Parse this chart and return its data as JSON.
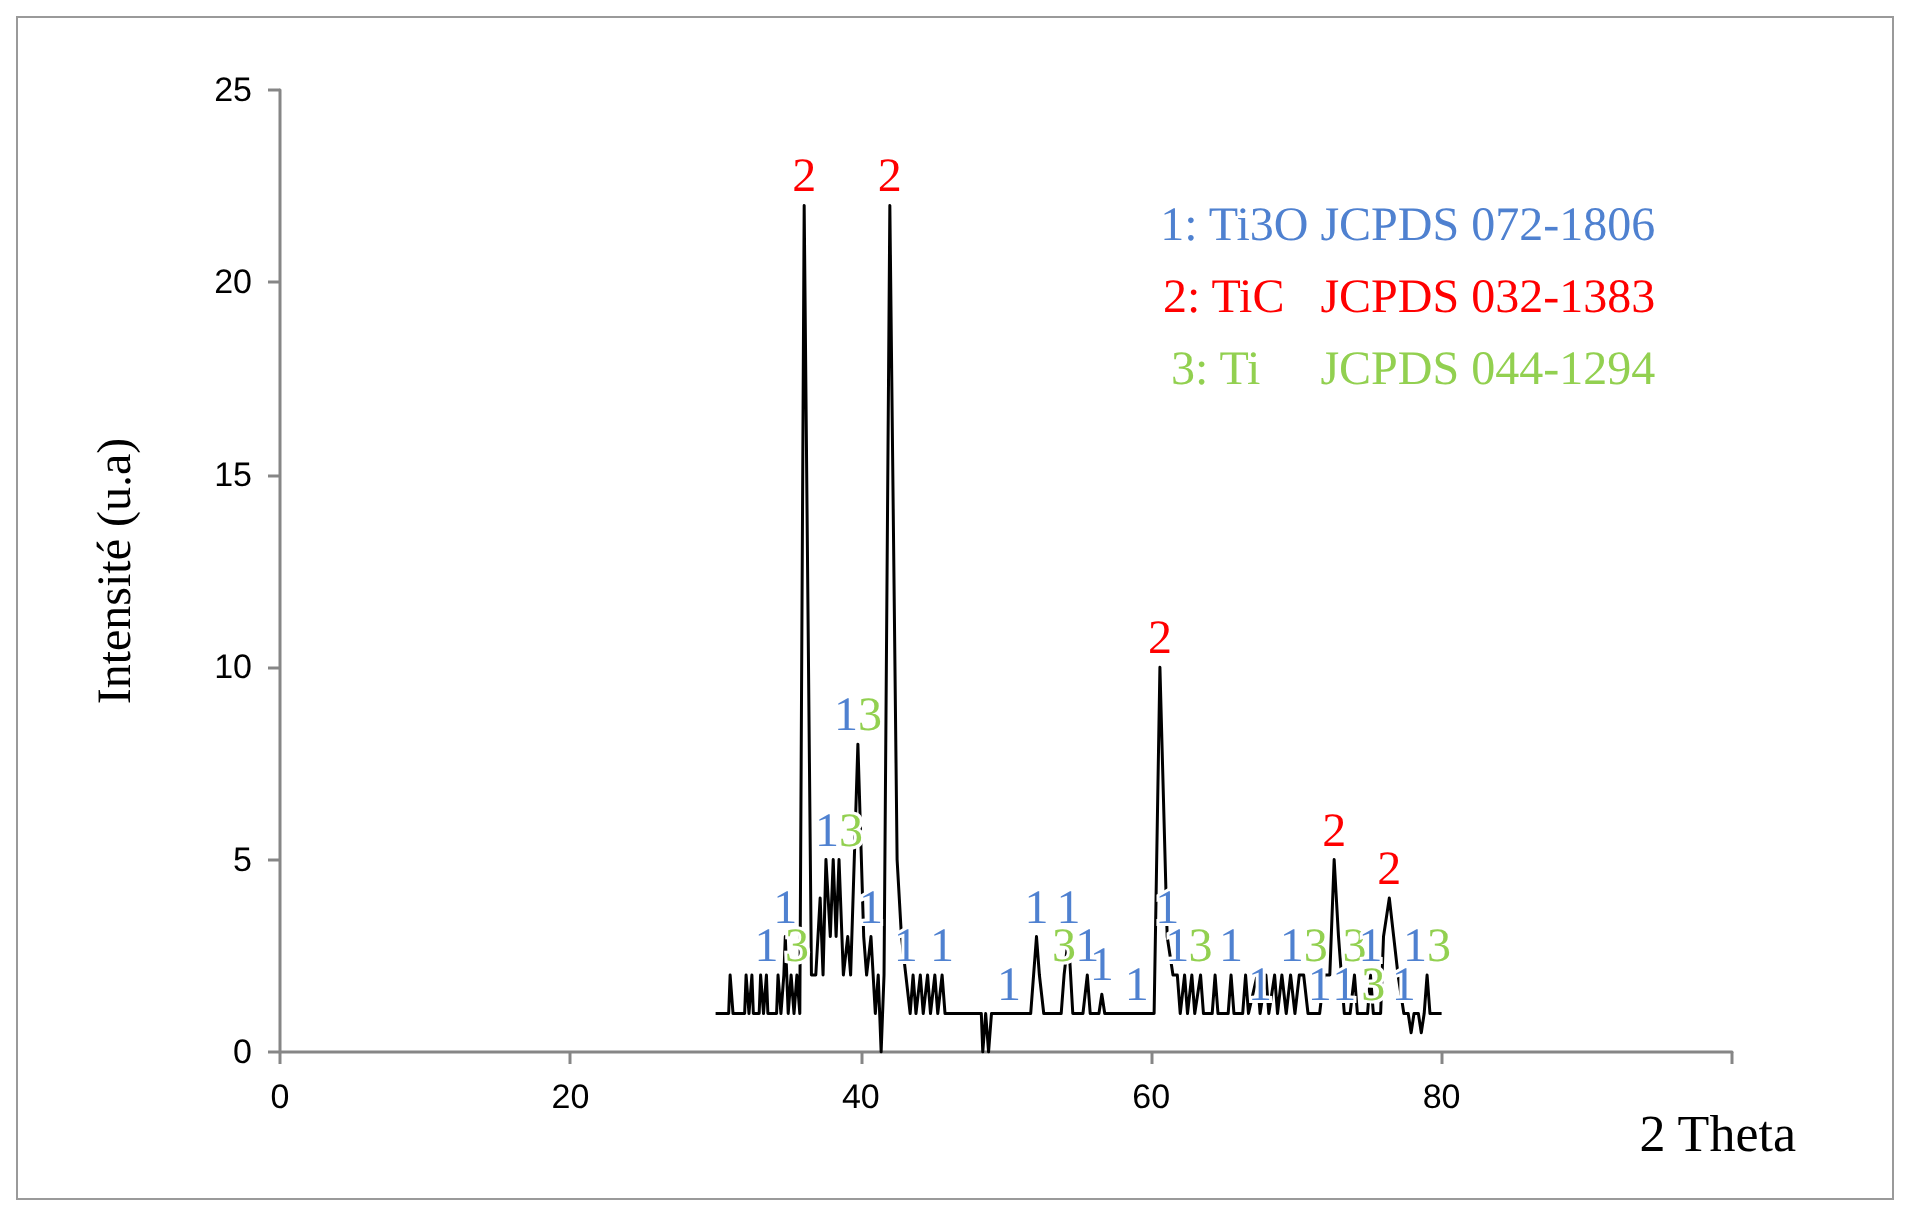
{
  "chart_data": {
    "type": "line",
    "xlabel": "2 Theta",
    "ylabel": "Intensité (u.a)",
    "xlim": [
      0,
      100
    ],
    "xticks": [
      0,
      20,
      40,
      60,
      80,
      {
        "value": 100,
        "label": null
      }
    ],
    "ylim": [
      0,
      25
    ],
    "yticks": [
      0,
      5,
      10,
      15,
      20,
      25
    ],
    "marker": "none",
    "series": [
      {
        "color": "#000000",
        "x": [
          30,
          30.9,
          31,
          31.2,
          32,
          32.1,
          32.3,
          32.5,
          32.6,
          33,
          33.1,
          33.3,
          33.5,
          33.6,
          34.2,
          34.3,
          34.5,
          34.7,
          34.8,
          35.0,
          35.2,
          35.4,
          35.6,
          35.8,
          36.1,
          36.6,
          36.9,
          37.2,
          37.4,
          37.6,
          37.9,
          38.1,
          38.3,
          38.5,
          38.8,
          39.1,
          39.3,
          39.8,
          40.2,
          40.4,
          40.7,
          41.0,
          41.2,
          41.4,
          41.6,
          42.0,
          42.5,
          42.8,
          43.1,
          43.4,
          43.6,
          43.8,
          44.1,
          44.3,
          44.6,
          44.8,
          45.1,
          45.3,
          45.6,
          45.8,
          48.3,
          48.4,
          48.6,
          48.8,
          49.0,
          50.2,
          51.7,
          51.9,
          52.1,
          52.3,
          52.6,
          53.8,
          54.0,
          54.3,
          54.6,
          55.3,
          55.6,
          55.8,
          56.4,
          56.6,
          56.8,
          59.0,
          60.2,
          60.6,
          61.1,
          61.5,
          61.8,
          62.0,
          62.3,
          62.5,
          62.8,
          63.0,
          63.4,
          63.6,
          64.2,
          64.4,
          64.6,
          65.3,
          65.5,
          65.7,
          66.3,
          66.5,
          66.7,
          67.3,
          67.5,
          67.9,
          68.1,
          68.5,
          68.7,
          69.0,
          69.3,
          69.6,
          69.9,
          70.2,
          70.5,
          70.8,
          71.6,
          71.9,
          72.3,
          72.6,
          72.9,
          73.3,
          73.7,
          74.0,
          74.2,
          74.9,
          75.1,
          75.3,
          75.8,
          76.0,
          76.4,
          76.7,
          77.0,
          77.4,
          77.7,
          77.9,
          78.1,
          78.4,
          78.6,
          78.8,
          79.0,
          79.2,
          80
        ],
        "values": [
          1,
          1,
          2,
          1,
          1,
          2,
          1,
          2,
          1,
          1,
          2,
          1,
          2,
          1,
          1,
          2,
          1,
          2,
          3,
          1,
          2,
          1,
          2,
          1,
          22,
          2,
          2,
          4,
          2,
          5,
          3,
          5,
          3,
          5,
          2,
          3,
          2,
          8,
          3,
          2,
          3,
          1,
          2,
          0,
          2,
          22,
          5,
          3,
          2,
          1,
          2,
          1,
          2,
          1,
          2,
          1,
          2,
          1,
          2,
          1,
          1,
          0,
          1,
          0,
          1,
          1,
          1,
          2,
          3,
          2,
          1,
          1,
          2,
          3,
          1,
          1,
          2,
          1,
          1,
          1.5,
          1,
          1,
          1,
          10,
          3,
          2,
          2,
          1,
          2,
          1,
          2,
          1,
          2,
          1,
          1,
          2,
          1,
          1,
          2,
          1,
          1,
          2,
          1,
          2,
          1,
          2,
          1,
          2,
          1,
          2,
          1,
          2,
          1,
          2,
          2,
          1,
          1,
          2,
          2,
          5,
          3,
          1,
          1,
          2,
          1,
          1,
          2,
          1,
          1,
          3,
          4,
          3,
          2,
          1,
          1,
          0.5,
          1,
          1,
          0.5,
          1,
          2,
          1,
          1
        ]
      },
      {
        "name": "1: Ti3O JCPDS 072-1806",
        "color": "#4f81d0"
      },
      {
        "name": "2: TiC   JCPDS 032-1383",
        "color": "#ff0000"
      },
      {
        "name": "3: Ti     JCPDS 044-1294",
        "color": "#92d050"
      }
    ],
    "annotations": [
      {
        "text": "1",
        "x": 33.5,
        "y": 2
      },
      {
        "text": "1",
        "x": 34.8,
        "y": 3
      },
      {
        "text": "3",
        "x": 35.6,
        "y": 2
      },
      {
        "text": "2",
        "x": 36.1,
        "y": 22
      },
      {
        "text": "1",
        "x": 38.5,
        "y": 5
      },
      {
        "text": "3",
        "x": 38.5,
        "y": 5
      },
      {
        "text": "1",
        "x": 39.8,
        "y": 8
      },
      {
        "text": "3",
        "x": 39.8,
        "y": 8
      },
      {
        "text": "1",
        "x": 40.7,
        "y": 3
      },
      {
        "text": "2",
        "x": 42.0,
        "y": 22
      },
      {
        "text": "1",
        "x": 43.1,
        "y": 2
      },
      {
        "text": "1",
        "x": 45.6,
        "y": 2
      },
      {
        "text": "1",
        "x": 50.2,
        "y": 1
      },
      {
        "text": "1",
        "x": 52.1,
        "y": 3
      },
      {
        "text": "3",
        "x": 54.0,
        "y": 2
      },
      {
        "text": "1",
        "x": 54.3,
        "y": 3
      },
      {
        "text": "1",
        "x": 55.6,
        "y": 2
      },
      {
        "text": "1",
        "x": 56.6,
        "y": 1.5
      },
      {
        "text": "1",
        "x": 59.0,
        "y": 1
      },
      {
        "text": "2",
        "x": 60.6,
        "y": 10
      },
      {
        "text": "1",
        "x": 61.1,
        "y": 3
      },
      {
        "text": "1",
        "x": 61.8,
        "y": 2
      },
      {
        "text": "3",
        "x": 63.4,
        "y": 2
      },
      {
        "text": "1",
        "x": 65.5,
        "y": 2
      },
      {
        "text": "1",
        "x": 67.5,
        "y": 1
      },
      {
        "text": "1",
        "x": 70.5,
        "y": 2
      },
      {
        "text": "3",
        "x": 70.5,
        "y": 2
      },
      {
        "text": "1",
        "x": 71.6,
        "y": 1
      },
      {
        "text": "2",
        "x": 72.6,
        "y": 5
      },
      {
        "text": "1",
        "x": 73.3,
        "y": 1
      },
      {
        "text": "3",
        "x": 74.0,
        "y": 2
      },
      {
        "text": "1",
        "x": 75.1,
        "y": 2
      },
      {
        "text": "3",
        "x": 75.3,
        "y": 1
      },
      {
        "text": "2",
        "x": 76.4,
        "y": 4
      },
      {
        "text": "1",
        "x": 77.4,
        "y": 1
      },
      {
        "text": "1",
        "x": 79.0,
        "y": 2
      },
      {
        "text": "3",
        "x": 79.0,
        "y": 2
      }
    ]
  }
}
